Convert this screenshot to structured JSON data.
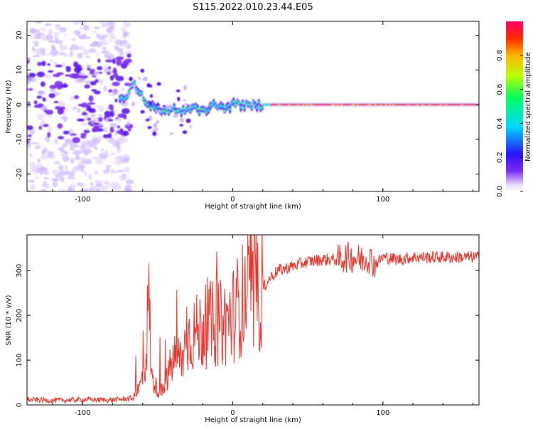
{
  "title": "S115.2022.010.23.44.E05",
  "colors": {
    "snr_line": "#e8312b",
    "axis": "#000000",
    "background": "#ffffff"
  },
  "chart_data": [
    {
      "type": "heatmap",
      "xlabel": "Height of straight line (km)",
      "ylabel": "Frequency (Hz)",
      "xlim": [
        -137,
        164
      ],
      "ylim": [
        -25,
        24
      ],
      "xticks": [
        -100,
        0,
        100
      ],
      "yticks": [
        -20,
        -10,
        0,
        10,
        20
      ],
      "colorbar": {
        "label": "Normalized spectral amplitude",
        "range": [
          0,
          1
        ],
        "ticks": [
          "0.0",
          "0.2",
          "0.4",
          "0.6",
          "0.8"
        ],
        "colormap": [
          "#ffffff",
          "#e6d9ff",
          "#7b2cf0",
          "#2a14ff",
          "#00d8ff",
          "#00ff60",
          "#b8ff00",
          "#ffb400",
          "#ff2a00",
          "#ff0066"
        ]
      },
      "trace": {
        "description_x": [
          -137,
          -70,
          -66,
          -63,
          -58,
          -52,
          -45,
          -40,
          -33,
          -25,
          -18,
          -12,
          -5,
          0,
          5,
          10,
          20,
          40,
          70,
          95,
          164
        ],
        "frequency_y": [
          1,
          2,
          7,
          4,
          1,
          -1,
          -2,
          -1,
          -2,
          -1,
          -2,
          0,
          -1,
          0,
          0,
          0,
          0,
          0,
          0,
          0,
          0
        ]
      }
    },
    {
      "type": "line",
      "xlabel": "Height of straight line (km)",
      "ylabel": "SNR (10 * v/v)",
      "xlim": [
        -137,
        164
      ],
      "ylim": [
        0,
        380
      ],
      "xticks": [
        -100,
        0,
        100
      ],
      "yticks": [
        0,
        100,
        200,
        300
      ],
      "series": [
        {
          "x": [
            -137,
            -120,
            -100,
            -80,
            -66,
            -62,
            -58,
            -56,
            -54,
            -50,
            -46,
            -42,
            -38,
            -34,
            -30,
            -25,
            -20,
            -15,
            -10,
            -5,
            0,
            5,
            10,
            15,
            20,
            25,
            30,
            40,
            50,
            60,
            70,
            75,
            80,
            85,
            90,
            95,
            100,
            110,
            120,
            130,
            140,
            150,
            164
          ],
          "y": [
            12,
            10,
            12,
            11,
            15,
            40,
            90,
            250,
            60,
            35,
            30,
            80,
            110,
            100,
            150,
            160,
            170,
            180,
            180,
            185,
            200,
            230,
            250,
            230,
            260,
            285,
            300,
            310,
            320,
            325,
            325,
            330,
            330,
            325,
            330,
            315,
            330,
            325,
            330,
            330,
            330,
            330,
            330
          ]
        }
      ]
    }
  ]
}
